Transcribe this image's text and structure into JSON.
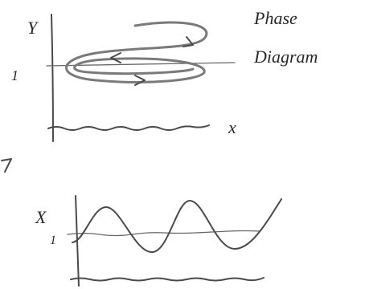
{
  "phase_diagram": {
    "y_axis_label": "Y",
    "x_axis_label": "x",
    "tick_label": "1",
    "title_lines": [
      "Phase",
      "Diagram"
    ]
  },
  "time_series": {
    "y_axis_label": "X",
    "tick_label": "1"
  }
}
